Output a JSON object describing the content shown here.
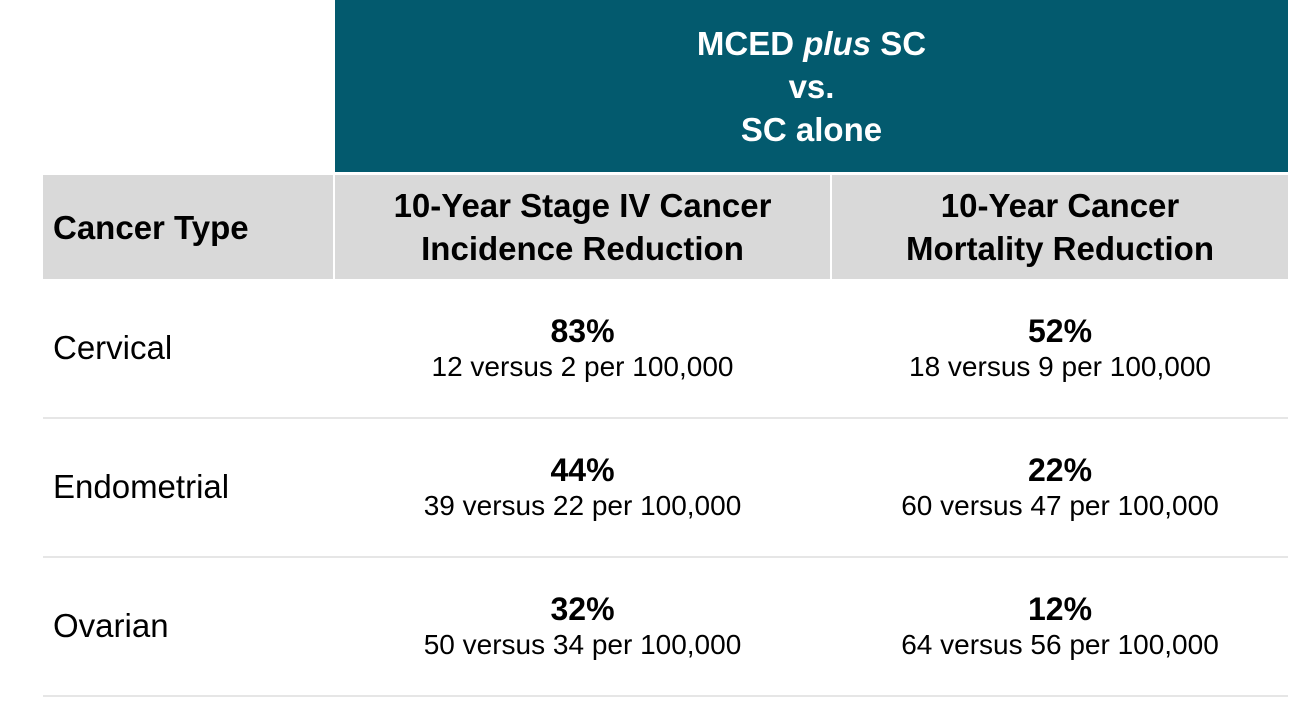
{
  "banner": {
    "line1_a": "MCED ",
    "line1_em": "plus",
    "line1_b": " SC",
    "line2": "vs.",
    "line3": "SC alone"
  },
  "headers": {
    "cancer_type": "Cancer Type",
    "incidence": [
      "10-Year Stage IV Cancer",
      "Incidence Reduction"
    ],
    "mortality": [
      "10-Year Cancer",
      "Mortality Reduction"
    ]
  },
  "rows": [
    {
      "type": "Cervical",
      "inc_pct": "83%",
      "inc_detail": "12 versus 2 per 100,000",
      "mort_pct": "52%",
      "mort_detail": "18 versus 9 per 100,000"
    },
    {
      "type": "Endometrial",
      "inc_pct": "44%",
      "inc_detail": "39 versus 22 per 100,000",
      "mort_pct": "22%",
      "mort_detail": "60 versus 47 per 100,000"
    },
    {
      "type": "Ovarian",
      "inc_pct": "32%",
      "inc_detail": "50 versus 34 per 100,000",
      "mort_pct": "12%",
      "mort_detail": "64 versus 56 per 100,000"
    }
  ],
  "colors": {
    "banner": "#035a6e",
    "header_bg": "#d9d9d9"
  }
}
